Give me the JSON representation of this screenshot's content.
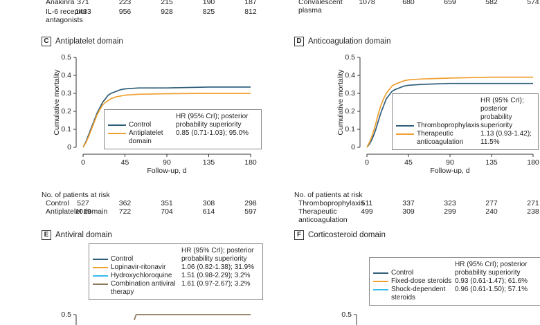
{
  "top_risk": [
    {
      "name": "Anakinra",
      "values": [
        371,
        223,
        215,
        190,
        187
      ]
    },
    {
      "name": "IL-6 receptor antagonists",
      "values": [
        1433,
        956,
        928,
        825,
        812
      ]
    },
    {
      "name": "Convalescent plasma",
      "values": [
        1078,
        680,
        659,
        582,
        574
      ]
    }
  ],
  "chart_data": [
    {
      "type": "line",
      "panel": "C",
      "title": "Antiplatelet domain",
      "x_label": "Follow-up, d",
      "y_label": "Cumulative mortality",
      "xlim": [
        0,
        180
      ],
      "xticks": [
        0,
        45,
        90,
        135,
        180
      ],
      "ylim": [
        0,
        0.5
      ],
      "yticks": [
        0,
        0.1,
        0.2,
        0.3,
        0.4,
        0.5
      ],
      "legend_header": "HR (95% CrI); posterior probability superiority",
      "risk_title": "No. of patients at risk",
      "series": [
        {
          "name": "Control",
          "color": "#2f5e7a",
          "x": [
            0,
            3,
            6,
            9,
            12,
            15,
            18,
            21,
            24,
            27,
            30,
            35,
            40,
            45,
            60,
            90,
            135,
            180
          ],
          "values": [
            0,
            0.03,
            0.07,
            0.11,
            0.15,
            0.19,
            0.22,
            0.25,
            0.27,
            0.29,
            0.3,
            0.31,
            0.32,
            0.325,
            0.33,
            0.33,
            0.335,
            0.335
          ],
          "at_risk": [
            527,
            362,
            351,
            308,
            298
          ]
        },
        {
          "name": "Antiplatelet domain",
          "color": "#f0a030",
          "hr": "0.85 (0.71-1.03); 95.0%",
          "x": [
            0,
            3,
            6,
            9,
            12,
            15,
            18,
            21,
            24,
            27,
            30,
            35,
            40,
            45,
            60,
            90,
            135,
            180
          ],
          "values": [
            0,
            0.025,
            0.06,
            0.1,
            0.14,
            0.18,
            0.21,
            0.235,
            0.25,
            0.26,
            0.27,
            0.28,
            0.285,
            0.29,
            0.295,
            0.298,
            0.3,
            0.3
          ],
          "at_risk": [
            1019,
            722,
            704,
            614,
            597
          ]
        }
      ]
    },
    {
      "type": "line",
      "panel": "D",
      "title": "Anticoagulation domain",
      "x_label": "Follow-up, d",
      "y_label": "Cumulative mortality",
      "xlim": [
        0,
        180
      ],
      "xticks": [
        0,
        45,
        90,
        135,
        180
      ],
      "ylim": [
        0,
        0.5
      ],
      "yticks": [
        0,
        0.1,
        0.2,
        0.3,
        0.4,
        0.5
      ],
      "legend_header": "HR (95% CrI); posterior probability superiority",
      "risk_title": "No. of patients at risk",
      "series": [
        {
          "name": "Thromboprophylaxis",
          "color": "#2f5e7a",
          "x": [
            0,
            3,
            6,
            9,
            12,
            15,
            18,
            21,
            24,
            27,
            30,
            35,
            40,
            45,
            60,
            90,
            135,
            180
          ],
          "values": [
            0,
            0.02,
            0.05,
            0.09,
            0.14,
            0.19,
            0.23,
            0.27,
            0.29,
            0.31,
            0.32,
            0.33,
            0.34,
            0.345,
            0.35,
            0.355,
            0.355,
            0.355
          ],
          "at_risk": [
            511,
            337,
            323,
            277,
            271
          ]
        },
        {
          "name": "Therapeutic anticoagulation",
          "color": "#f0a030",
          "hr": "1.13 (0.93-1.42); 11.5%",
          "x": [
            0,
            3,
            6,
            9,
            12,
            15,
            18,
            21,
            24,
            27,
            30,
            35,
            40,
            45,
            60,
            90,
            135,
            180
          ],
          "values": [
            0,
            0.03,
            0.07,
            0.12,
            0.18,
            0.23,
            0.27,
            0.3,
            0.32,
            0.34,
            0.35,
            0.36,
            0.37,
            0.375,
            0.38,
            0.385,
            0.39,
            0.39
          ],
          "at_risk": [
            499,
            309,
            299,
            240,
            238
          ]
        }
      ]
    },
    {
      "type": "line",
      "panel": "E",
      "title": "Antiviral domain",
      "xlim": [
        0,
        180
      ],
      "ylim": [
        0,
        0.5
      ],
      "yticks": [
        0.5
      ],
      "legend_header": "HR (95% CrI); posterior probability superiority",
      "series": [
        {
          "name": "Control",
          "color": "#2f5e7a"
        },
        {
          "name": "Lopinavir-ritonavir",
          "color": "#f0a030",
          "hr": "1.06 (0.82-1.38); 31.9%"
        },
        {
          "name": "Hydroxychloroquine",
          "color": "#33bbee",
          "hr": "1.51 (0.98-2.29); 3.2%"
        },
        {
          "name": "Combination antiviral therapy",
          "color": "#8c7a5a",
          "hr": "1.61 (0.97-2.67); 3.2%",
          "x": [
            55,
            57,
            180
          ],
          "values": [
            0.47,
            0.5,
            0.5
          ]
        }
      ]
    },
    {
      "type": "line",
      "panel": "F",
      "title": "Corticosteroid domain",
      "xlim": [
        0,
        180
      ],
      "ylim": [
        0,
        0.5
      ],
      "yticks": [
        0.5
      ],
      "legend_header": "HR (95% CrI); posterior probability superiority",
      "series": [
        {
          "name": "Control",
          "color": "#2f5e7a"
        },
        {
          "name": "Fixed-dose steroids",
          "color": "#f0a030",
          "hr": "0.93 (0.61-1.47); 61.6%"
        },
        {
          "name": "Shock-dependent steroids",
          "color": "#33bbee",
          "hr": "0.96 (0.61-1.50); 57.1%"
        }
      ]
    }
  ]
}
